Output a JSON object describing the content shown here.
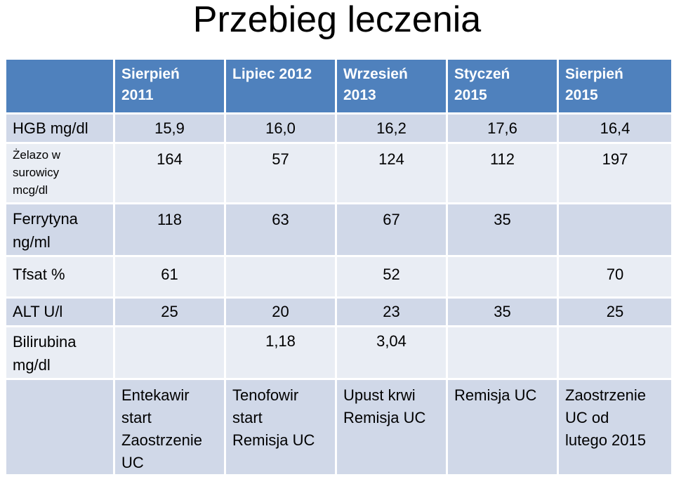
{
  "title": "Przebieg leczenia",
  "table": {
    "headers": [
      "",
      "Sierpień 2011",
      "Lipiec 2012",
      "Wrzesień 2013",
      "Styczeń 2015",
      "Sierpień 2015"
    ],
    "header_lines": {
      "h1": [
        "Sierpień",
        "2011"
      ],
      "h2": [
        "Lipiec 2012"
      ],
      "h3": [
        "Wrzesień",
        "2013"
      ],
      "h4": [
        "Styczeń",
        "2015"
      ],
      "h5": [
        "Sierpień",
        "2015"
      ]
    },
    "rows": {
      "hgb": {
        "label": "HGB mg/dl",
        "values": [
          "15,9",
          "16,0",
          "16,2",
          "17,6",
          "16,4"
        ]
      },
      "iron": {
        "label_lines": [
          "Żelazo w",
          "surowicy",
          "mcg/dl"
        ],
        "values": [
          "164",
          "57",
          "124",
          "112",
          "197"
        ]
      },
      "ferritin": {
        "label_lines": [
          "Ferrytyna",
          "ng/ml"
        ],
        "values": [
          "118",
          "63",
          "67",
          "35",
          ""
        ]
      },
      "tfsat": {
        "label": "Tfsat %",
        "values": [
          "61",
          "",
          "52",
          "",
          "70"
        ]
      },
      "alt": {
        "label": "ALT U/l",
        "values": [
          "25",
          "20",
          "23",
          "35",
          "25"
        ]
      },
      "bilirubin": {
        "label_lines": [
          "Bilirubina",
          "mg/dl"
        ],
        "values": [
          "",
          "1,18",
          "3,04",
          "",
          ""
        ]
      },
      "notes": {
        "label": "",
        "c1": [
          "Entekawir",
          "start",
          "Zaostrzenie",
          "UC"
        ],
        "c2": [
          "Tenofowir",
          "start",
          "Remisja UC"
        ],
        "c3": [
          "Upust krwi",
          "Remisja UC"
        ],
        "c4": [
          "Remisja UC"
        ],
        "c5": [
          "Zaostrzenie",
          "UC od",
          "lutego 2015"
        ]
      }
    }
  },
  "colors": {
    "header_bg": "#4f81bd",
    "row_dark": "#d0d8e8",
    "row_light": "#e9edf4"
  }
}
